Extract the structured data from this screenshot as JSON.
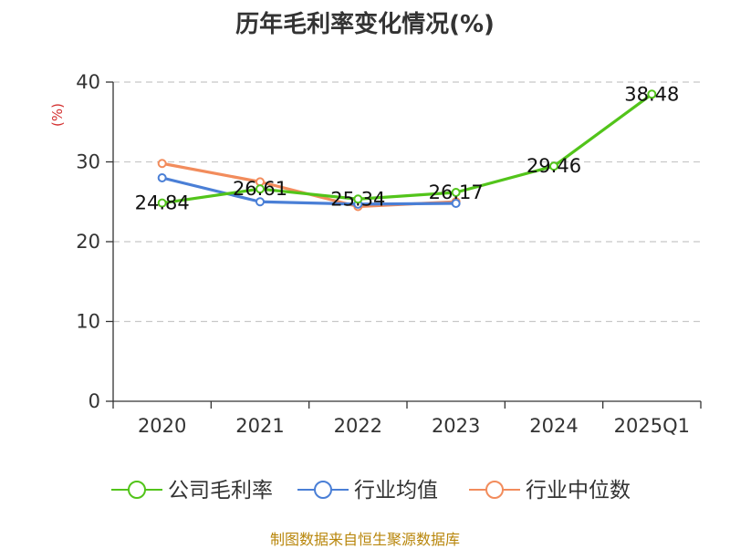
{
  "chart_data": {
    "type": "line",
    "title": "历年毛利率变化情况(%)",
    "ylabel": "(%)",
    "xlabel": "",
    "categories": [
      "2020",
      "2021",
      "2022",
      "2023",
      "2024",
      "2025Q1"
    ],
    "ylim": [
      0,
      40
    ],
    "yticks": [
      0,
      10,
      20,
      30,
      40
    ],
    "grid": true,
    "legend_position": "bottom",
    "series": [
      {
        "name": "公司毛利率",
        "color": "#52c41a",
        "values": [
          24.84,
          26.61,
          25.34,
          26.17,
          29.46,
          38.48
        ],
        "show_labels": true
      },
      {
        "name": "行业均值",
        "color": "#4a7fd6",
        "values": [
          28.0,
          25.0,
          24.7,
          24.8,
          null,
          null
        ],
        "show_labels": false
      },
      {
        "name": "行业中位数",
        "color": "#f28c5c",
        "values": [
          29.8,
          27.5,
          24.4,
          25.0,
          null,
          null
        ],
        "show_labels": false
      }
    ]
  },
  "source_note": "制图数据来自恒生聚源数据库"
}
